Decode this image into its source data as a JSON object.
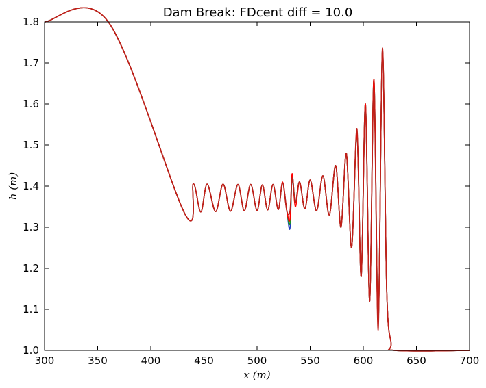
{
  "chart_data": {
    "type": "line",
    "title": "Dam Break: FDcent diff = 10.0",
    "xlabel": "x (m)",
    "ylabel": "h (m)",
    "xlim": [
      300,
      700
    ],
    "ylim": [
      1.0,
      1.8
    ],
    "xticks": [
      300,
      350,
      400,
      450,
      500,
      550,
      600,
      650,
      700
    ],
    "yticks": [
      1.0,
      1.1,
      1.2,
      1.3,
      1.4,
      1.5,
      1.6,
      1.7,
      1.8
    ],
    "grid": false,
    "legend": "none",
    "series": [
      {
        "color": "#1f3fbf",
        "x": [
          300,
          360,
          432,
          440,
          447,
          453,
          461,
          468,
          475,
          482,
          488,
          494,
          500,
          505,
          510,
          515,
          520,
          524,
          528,
          531,
          533,
          536,
          540,
          545,
          550,
          556,
          562,
          568,
          574,
          579,
          584,
          589,
          594,
          598,
          602,
          606,
          610,
          614,
          618,
          622,
          626,
          630,
          700
        ],
        "y": [
          1.8,
          1.8,
          1.333,
          1.406,
          1.337,
          1.405,
          1.338,
          1.405,
          1.339,
          1.404,
          1.34,
          1.404,
          1.341,
          1.403,
          1.342,
          1.404,
          1.343,
          1.408,
          1.34,
          1.298,
          1.425,
          1.36,
          1.41,
          1.345,
          1.415,
          1.34,
          1.425,
          1.33,
          1.45,
          1.3,
          1.48,
          1.25,
          1.53,
          1.18,
          1.6,
          1.12,
          1.66,
          1.07,
          1.73,
          1.15,
          1.02,
          1.0,
          1.0
        ]
      },
      {
        "color": "#1a9a1a",
        "x": [
          300,
          360,
          432,
          440,
          447,
          453,
          461,
          468,
          475,
          482,
          488,
          494,
          500,
          505,
          510,
          515,
          520,
          524,
          528,
          531,
          533,
          536,
          540,
          545,
          550,
          556,
          562,
          568,
          574,
          579,
          584,
          589,
          594,
          598,
          602,
          606,
          610,
          614,
          618,
          622,
          626,
          630,
          700
        ],
        "y": [
          1.8,
          1.8,
          1.333,
          1.406,
          1.337,
          1.405,
          1.338,
          1.405,
          1.339,
          1.404,
          1.34,
          1.404,
          1.341,
          1.403,
          1.342,
          1.404,
          1.343,
          1.408,
          1.34,
          1.31,
          1.425,
          1.36,
          1.41,
          1.345,
          1.415,
          1.34,
          1.425,
          1.33,
          1.45,
          1.3,
          1.48,
          1.25,
          1.53,
          1.18,
          1.6,
          1.12,
          1.66,
          1.07,
          1.73,
          1.15,
          1.02,
          1.0,
          1.0
        ]
      },
      {
        "color": "#ff0000",
        "x": [
          300,
          360,
          432,
          440,
          447,
          453,
          461,
          468,
          475,
          482,
          488,
          494,
          500,
          505,
          510,
          515,
          520,
          524,
          528,
          531,
          533,
          536,
          540,
          545,
          550,
          556,
          562,
          568,
          574,
          579,
          584,
          589,
          594,
          598,
          602,
          606,
          610,
          614,
          618,
          622,
          626,
          630,
          700
        ],
        "y": [
          1.8,
          1.8,
          1.333,
          1.406,
          1.337,
          1.405,
          1.338,
          1.405,
          1.339,
          1.404,
          1.34,
          1.404,
          1.341,
          1.403,
          1.342,
          1.404,
          1.343,
          1.41,
          1.34,
          1.32,
          1.43,
          1.35,
          1.41,
          1.345,
          1.415,
          1.34,
          1.425,
          1.33,
          1.45,
          1.3,
          1.48,
          1.25,
          1.53,
          1.18,
          1.6,
          1.12,
          1.66,
          1.07,
          1.73,
          1.15,
          1.02,
          1.0,
          1.0
        ]
      },
      {
        "color": "#c0201a",
        "x": [
          300,
          360,
          432,
          440,
          447,
          453,
          461,
          468,
          475,
          482,
          488,
          494,
          500,
          505,
          510,
          515,
          520,
          524,
          528,
          531,
          533,
          536,
          540,
          545,
          550,
          556,
          562,
          568,
          574,
          579,
          584,
          589,
          594,
          598,
          602,
          606,
          610,
          614,
          618,
          622,
          626,
          630,
          700
        ],
        "y": [
          1.8,
          1.8,
          1.333,
          1.406,
          1.337,
          1.405,
          1.338,
          1.405,
          1.339,
          1.404,
          1.34,
          1.404,
          1.341,
          1.403,
          1.342,
          1.404,
          1.343,
          1.408,
          1.34,
          1.34,
          1.42,
          1.36,
          1.41,
          1.345,
          1.415,
          1.34,
          1.425,
          1.33,
          1.45,
          1.3,
          1.48,
          1.25,
          1.54,
          1.18,
          1.59,
          1.12,
          1.64,
          1.05,
          1.736,
          1.15,
          1.02,
          1.0,
          1.0
        ]
      }
    ]
  }
}
